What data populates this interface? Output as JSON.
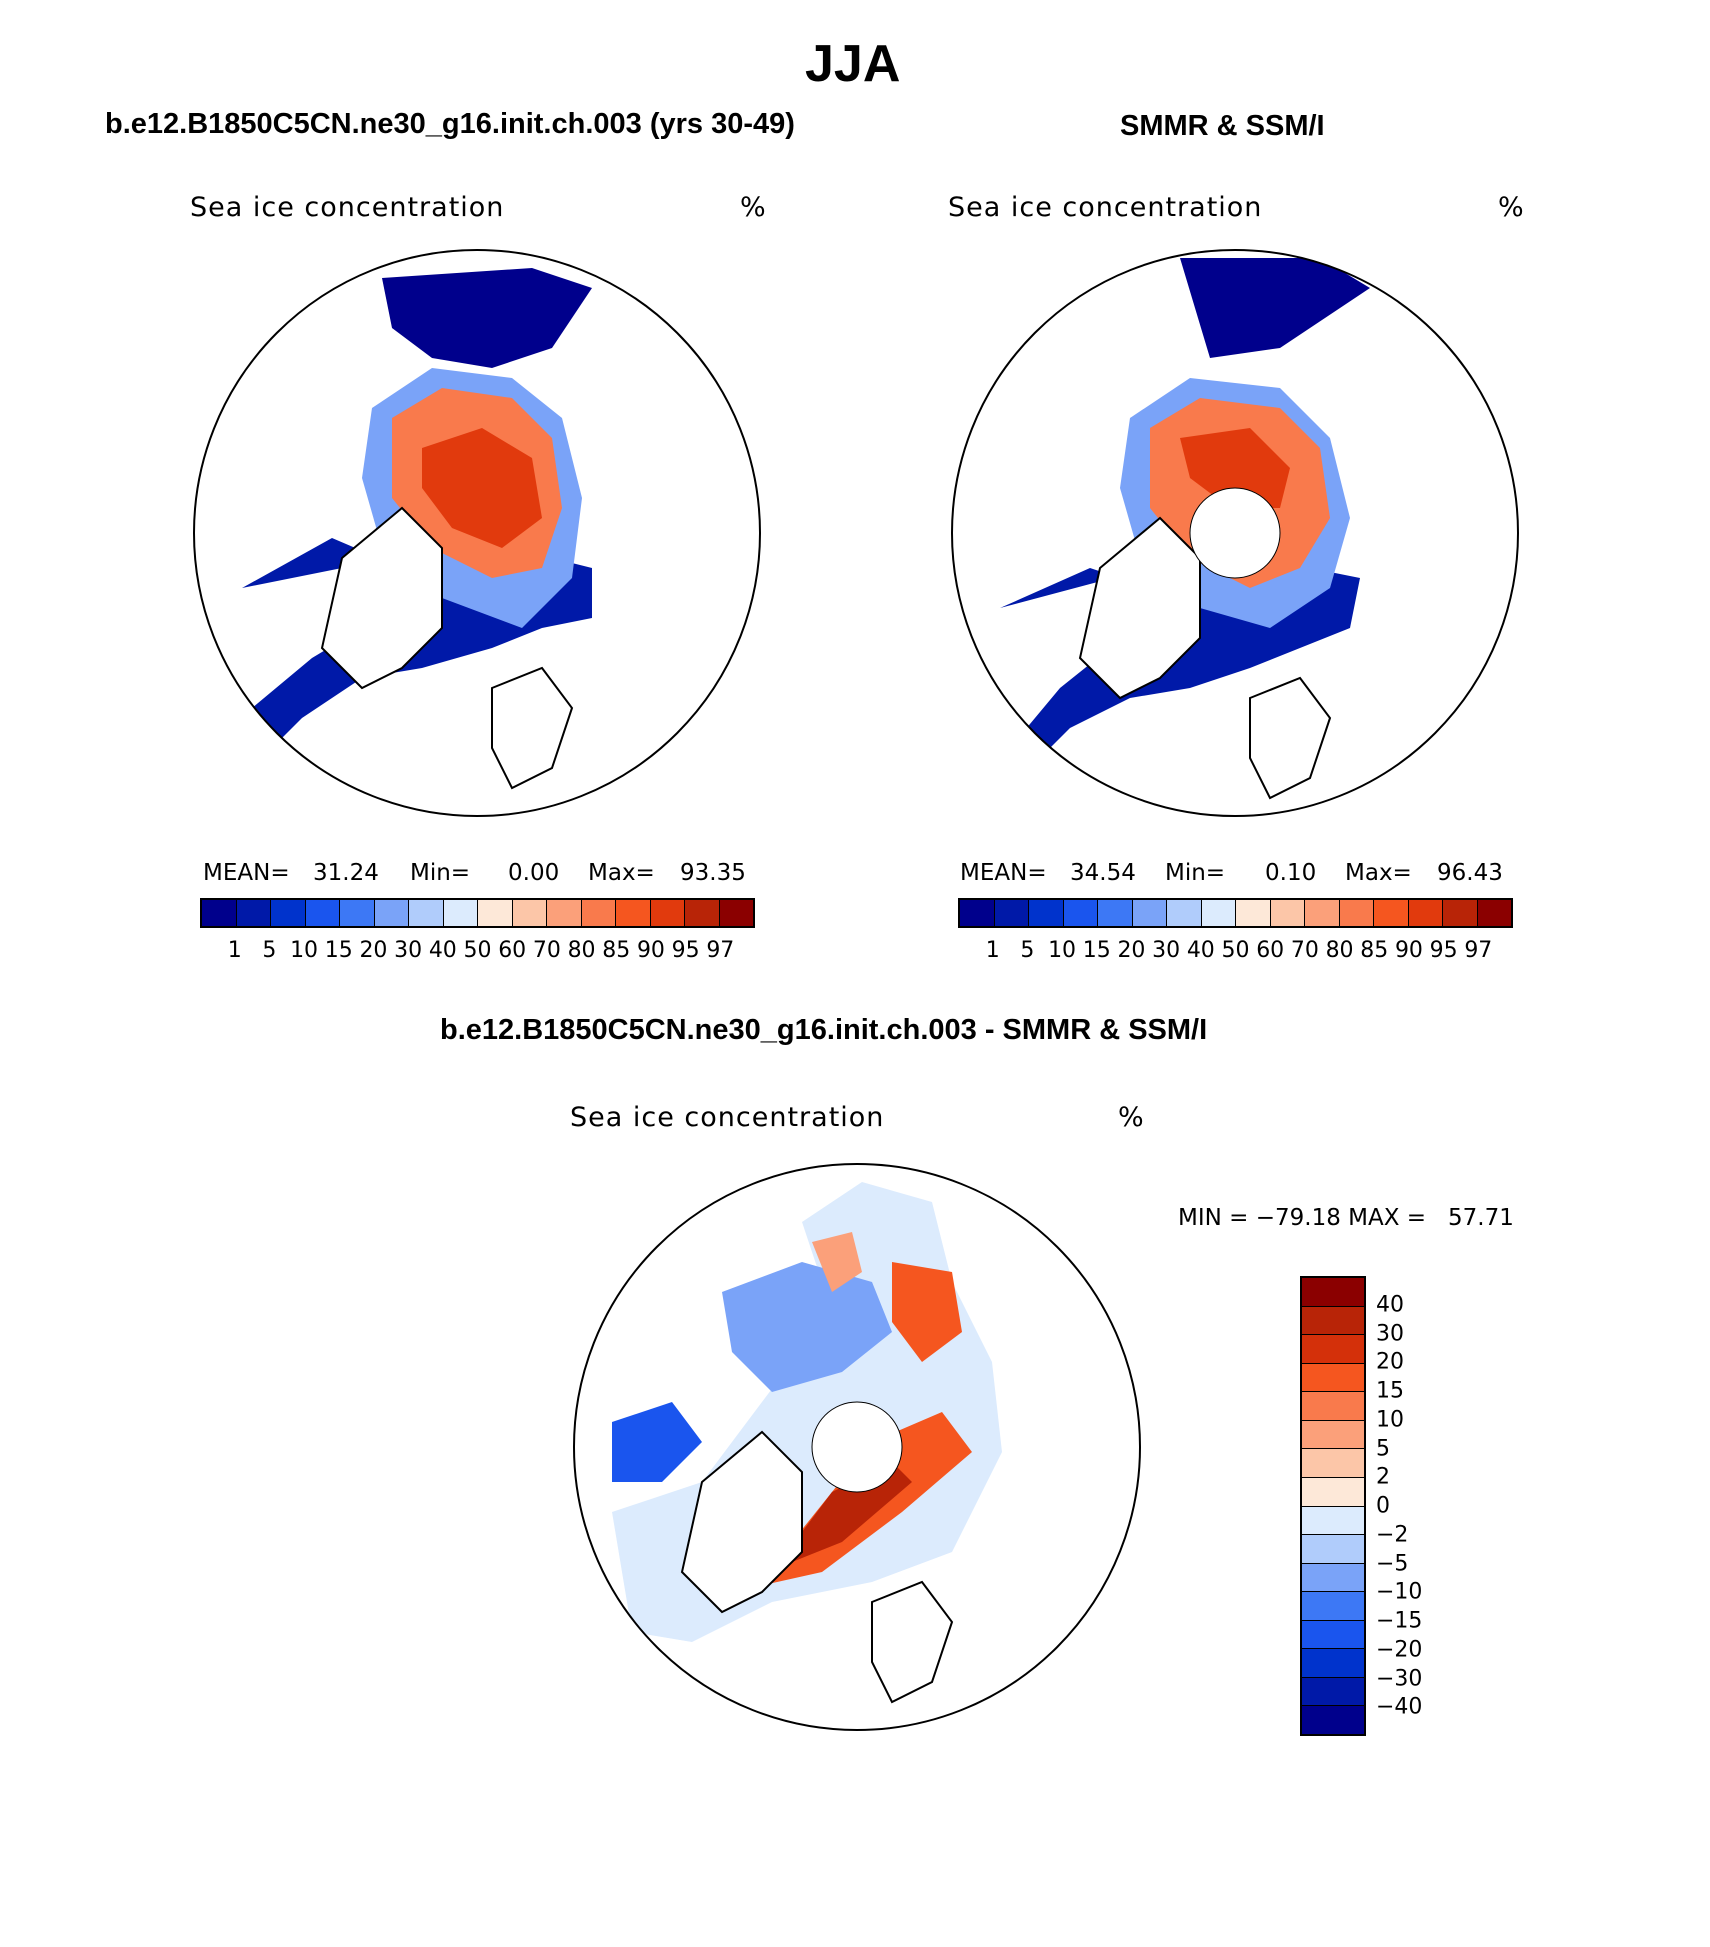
{
  "figure": {
    "title": "JJA",
    "panel_left_title": "b.e12.B1850C5CN.ne30_g16.init.ch.003 (yrs 30-49)",
    "panel_right_title": "SMMR & SSM/I",
    "panel_diff_title": "b.e12.B1850C5CN.ne30_g16.init.ch.003 - SMMR & SSM/I"
  },
  "panels": {
    "model": {
      "variable": "Sea ice concentration",
      "units": "%",
      "mean_label": "MEAN=",
      "mean": "31.24",
      "min_label": "Min=",
      "min": "0.00",
      "max_label": "Max=",
      "max": "93.35"
    },
    "obs": {
      "variable": "Sea ice concentration",
      "units": "%",
      "mean_label": "MEAN=",
      "mean": "34.54",
      "min_label": "Min=",
      "min": "0.10",
      "max_label": "Max=",
      "max": "96.43"
    },
    "diff": {
      "variable": "Sea ice concentration",
      "units": "%",
      "range_text": "MIN = −79.18 MAX =   57.71"
    }
  },
  "colorbars": {
    "concentration": {
      "colors": [
        "#00008c",
        "#0019a8",
        "#0033cc",
        "#1a55ee",
        "#3d78f5",
        "#7aa3f8",
        "#b0ccfb",
        "#dcebfd",
        "#fde8d8",
        "#fcc6a8",
        "#fba07a",
        "#f97a4c",
        "#f5561f",
        "#e13a0d",
        "#b82407",
        "#8b0000"
      ],
      "labels": [
        "1",
        "5",
        "10",
        "15",
        "20",
        "30",
        "40",
        "50",
        "60",
        "70",
        "80",
        "85",
        "90",
        "95",
        "97"
      ]
    },
    "difference": {
      "colors": [
        "#8b0000",
        "#b82407",
        "#d4300a",
        "#f5561f",
        "#f97a4c",
        "#fba07a",
        "#fcc6a8",
        "#fde8d8",
        "#dcebfd",
        "#b0ccfb",
        "#7aa3f8",
        "#3d78f5",
        "#1a55ee",
        "#0033cc",
        "#0019a8",
        "#00008c"
      ],
      "labels": [
        "40",
        "30",
        "20",
        "15",
        "10",
        "5",
        "2",
        "0",
        "−2",
        "−5",
        "−10",
        "−15",
        "−20",
        "−30",
        "−40"
      ]
    }
  }
}
